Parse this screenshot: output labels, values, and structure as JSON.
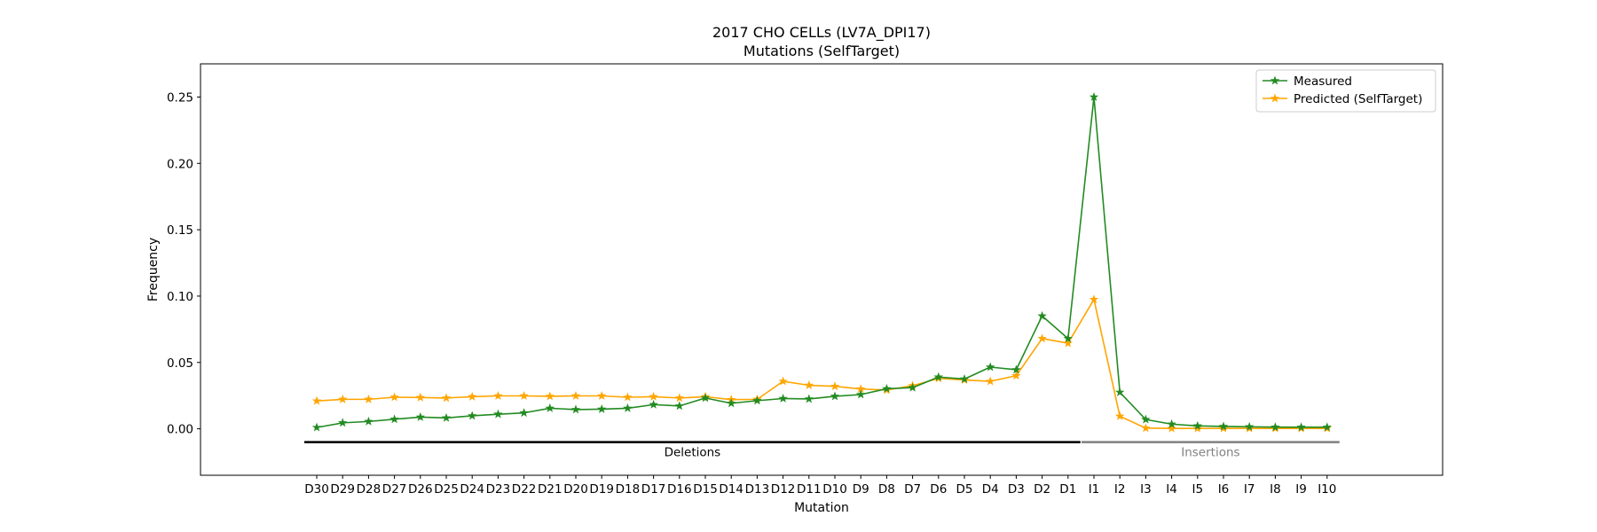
{
  "chart_data": {
    "type": "line",
    "title": "2017 CHO CELLs (LV7A_DPI17)",
    "subtitle": "Mutations (SelfTarget)",
    "xlabel": "Mutation",
    "ylabel": "Frequency",
    "ylim": [
      -0.035,
      0.275
    ],
    "yticks": [
      "0.00",
      "0.05",
      "0.10",
      "0.15",
      "0.20",
      "0.25"
    ],
    "ytick_values": [
      0.0,
      0.05,
      0.1,
      0.15,
      0.2,
      0.25
    ],
    "grid": false,
    "legend_position": "top-right",
    "categories": [
      "D30",
      "D29",
      "D28",
      "D27",
      "D26",
      "D25",
      "D24",
      "D23",
      "D22",
      "D21",
      "D20",
      "D19",
      "D18",
      "D17",
      "D16",
      "D15",
      "D14",
      "D13",
      "D12",
      "D11",
      "D10",
      "D9",
      "D8",
      "D7",
      "D6",
      "D5",
      "D4",
      "D3",
      "D2",
      "D1",
      "I1",
      "I2",
      "I3",
      "I4",
      "I5",
      "I6",
      "I7",
      "I8",
      "I9",
      "I10"
    ],
    "series": [
      {
        "name": "Measured",
        "color": "#228b22",
        "marker": "star",
        "values": [
          0.001,
          0.0045,
          0.0055,
          0.0072,
          0.0088,
          0.0082,
          0.0098,
          0.011,
          0.012,
          0.0155,
          0.0145,
          0.0148,
          0.0155,
          0.0182,
          0.0172,
          0.0232,
          0.0192,
          0.0212,
          0.0228,
          0.0225,
          0.0245,
          0.0258,
          0.0302,
          0.031,
          0.039,
          0.0375,
          0.0465,
          0.0445,
          0.085,
          0.068,
          0.25,
          0.0275,
          0.007,
          0.0035,
          0.0022,
          0.0018,
          0.0015,
          0.0013,
          0.0012,
          0.0012
        ]
      },
      {
        "name": "Predicted (SelfTarget)",
        "color": "#ffa500",
        "marker": "star",
        "values": [
          0.021,
          0.0222,
          0.0222,
          0.0238,
          0.0236,
          0.0232,
          0.0242,
          0.0248,
          0.0248,
          0.0245,
          0.0248,
          0.0248,
          0.0238,
          0.0242,
          0.0232,
          0.0242,
          0.022,
          0.0222,
          0.0358,
          0.0328,
          0.032,
          0.03,
          0.0292,
          0.0325,
          0.038,
          0.0368,
          0.0358,
          0.04,
          0.068,
          0.0645,
          0.0975,
          0.0095,
          0.0005,
          0.0003,
          0.0003,
          0.0003,
          0.0003,
          0.0003,
          0.0003,
          0.0003
        ]
      }
    ],
    "groups": [
      {
        "label": "Deletions",
        "from": "D30",
        "to": "D1",
        "color": "#000000"
      },
      {
        "label": "Insertions",
        "from": "I1",
        "to": "I10",
        "color": "#808080"
      }
    ]
  }
}
